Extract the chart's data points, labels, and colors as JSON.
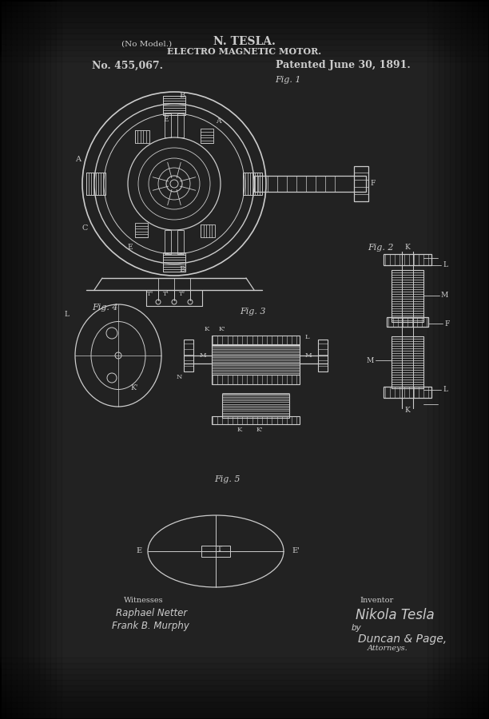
{
  "bg_color": "#222222",
  "line_color": "#cccccc",
  "text_color": "#cccccc",
  "title_line1": "N. TESLA.",
  "title_line2": "ELECTRO MAGNETIC MOTOR.",
  "no_model": "(No Model.)",
  "patent_no": "No. 455,067.",
  "patented": "Patented June 30, 1891.",
  "fig1_label": "Fig. 1",
  "fig2_label": "Fig. 2",
  "fig3_label": "Fig. 3",
  "fig4_label": "Fig. 4",
  "fig5_label": "Fig. 5",
  "witnesses_label": "Witnesses",
  "inventor_label": "Inventor",
  "witness1": "Raphael Netter",
  "witness2": "Frank B. Murphy",
  "inventor_sig": "Nikola Tesla",
  "attorney_by": "by",
  "attorney_sig": "Duncan & Page,",
  "attorneys": "Attorneys."
}
